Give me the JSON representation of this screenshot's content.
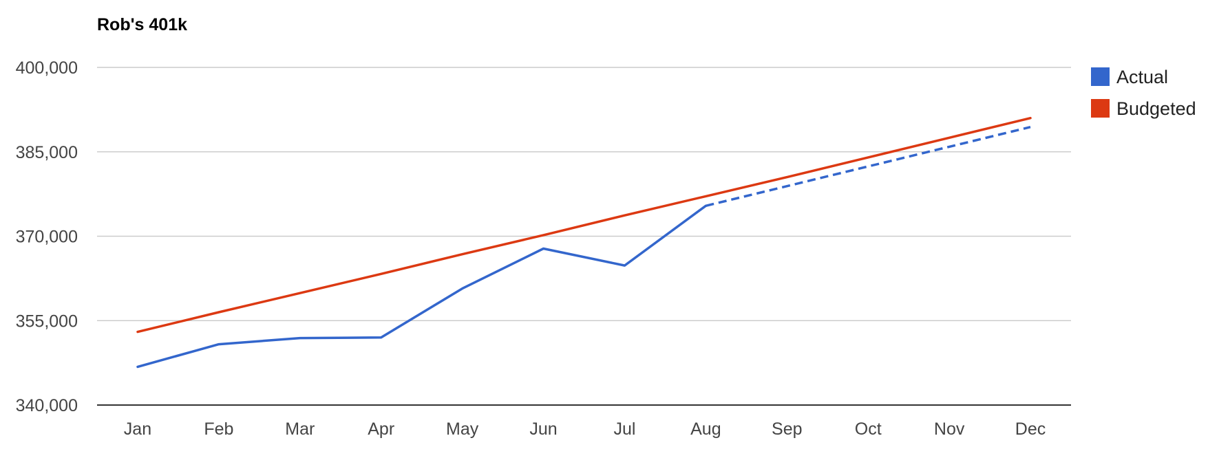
{
  "chart_data": {
    "type": "line",
    "title": "Rob's 401k",
    "xlabel": "",
    "ylabel": "",
    "categories": [
      "Jan",
      "Feb",
      "Mar",
      "Apr",
      "May",
      "Jun",
      "Jul",
      "Aug",
      "Sep",
      "Oct",
      "Nov",
      "Dec"
    ],
    "ylim": [
      340000,
      400000
    ],
    "yticks": [
      340000,
      355000,
      370000,
      385000,
      400000
    ],
    "ytick_labels": [
      "340,000",
      "355,000",
      "370,000",
      "385,000",
      "400,000"
    ],
    "grid": true,
    "legend": "right",
    "series": [
      {
        "name": "Actual",
        "color": "#3366cc",
        "values": [
          346800,
          350800,
          351900,
          352000,
          360700,
          367800,
          364800,
          375400,
          378900,
          382400,
          385900,
          389400
        ],
        "projected_from_index": 7
      },
      {
        "name": "Budgeted",
        "color": "#dc3912",
        "values": [
          353000,
          356500,
          359900,
          363300,
          366800,
          370200,
          373700,
          377100,
          380500,
          384000,
          387500,
          391000
        ]
      }
    ]
  }
}
